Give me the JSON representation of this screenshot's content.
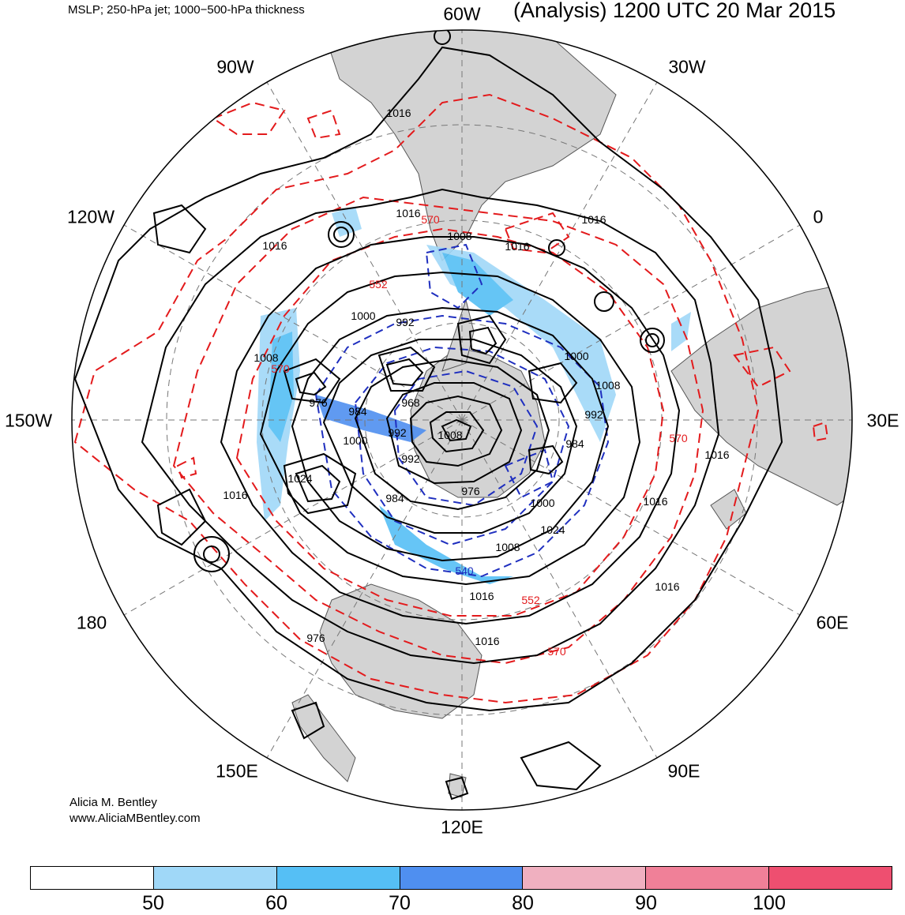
{
  "header": {
    "left_title": "MSLP; 250-hPa jet; 1000−500-hPa thickness",
    "right_title": "(Analysis) 1200 UTC 20 Mar 2015"
  },
  "map": {
    "projection": "south-polar-stereographic",
    "longitude_labels": {
      "lon_60w": "60W",
      "lon_30w": "30W",
      "lon_0": "0",
      "lon_30e": "30E",
      "lon_60e": "60E",
      "lon_90e": "90E",
      "lon_120e": "120E",
      "lon_150e": "150E",
      "lon_180": "180",
      "lon_150w": "150W",
      "lon_120w": "120W",
      "lon_90w": "90W"
    },
    "mslp_labels": [
      "1016",
      "1016",
      "1008",
      "1016",
      "1016",
      "1016",
      "1000",
      "992",
      "1000",
      "1008",
      "1008",
      "976",
      "984",
      "968",
      "992",
      "1008",
      "1000",
      "992",
      "984",
      "976",
      "1024",
      "1016",
      "1000",
      "1024",
      "1008",
      "1016",
      "1016",
      "1016",
      "1016",
      "1016",
      "984",
      "992",
      "976"
    ],
    "thickness_labels": [
      "570",
      "552",
      "570",
      "570",
      "540",
      "552",
      "570"
    ],
    "colors": {
      "land": "#d3d3d3",
      "mslp": "#000000",
      "thickness_warm": "#e31a1c",
      "thickness_cold": "#1f2fbf",
      "jet_50": "#a0d8f8",
      "jet_60": "#55bff5",
      "jet_70": "#4f8ff0"
    }
  },
  "colorbar": {
    "ticks": [
      "50",
      "60",
      "70",
      "80",
      "90",
      "100"
    ],
    "colors": [
      "#ffffff",
      "#a0d8f8",
      "#55bff5",
      "#4f8ff0",
      "#f0b0c0",
      "#f08098",
      "#ee4f70"
    ]
  },
  "credits": {
    "author": "Alicia M. Bentley",
    "website": "www.AliciaMBentley.com"
  }
}
